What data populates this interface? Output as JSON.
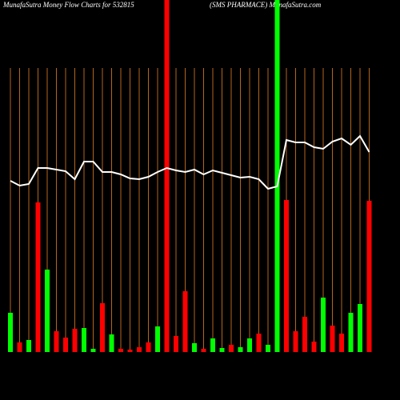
{
  "chart_data": {
    "type": "bar",
    "title": "MunafaSutra  Money Flow  Charts for 532815",
    "subtitle": "(SMS PHARMACE) MunafaSutra.com",
    "categories": [
      null,
      null,
      null,
      null,
      null,
      null,
      null,
      null,
      null,
      null,
      null,
      null,
      null,
      null,
      null,
      null,
      null,
      null,
      null,
      null,
      null,
      null,
      null,
      null,
      null,
      null,
      null,
      null,
      null,
      null,
      null,
      null,
      null,
      null,
      null,
      null,
      null,
      null,
      null,
      null
    ],
    "values": [
      49,
      12,
      15,
      187,
      103,
      26,
      18,
      29,
      30,
      4,
      61,
      22,
      4,
      3,
      6,
      12,
      32,
      440,
      20,
      76,
      11,
      4,
      17,
      5,
      9,
      6,
      17,
      23,
      9,
      440,
      190,
      26,
      44,
      13,
      68,
      33,
      23,
      49,
      60,
      189
    ],
    "colors": [
      "#00ff00",
      "#ff0000",
      "#00ff00",
      "#ff0000",
      "#00ff00",
      "#ff0000",
      "#ff0000",
      "#ff0000",
      "#00ff00",
      "#00ff00",
      "#ff0000",
      "#00ff00",
      "#ff0000",
      "#ff0000",
      "#ff0000",
      "#ff0000",
      "#00ff00",
      "#ff0000",
      "#ff0000",
      "#ff0000",
      "#00ff00",
      "#ff0000",
      "#00ff00",
      "#00ff00",
      "#ff0000",
      "#00ff00",
      "#00ff00",
      "#ff0000",
      "#00ff00",
      "#00ff00",
      "#ff0000",
      "#ff0000",
      "#ff0000",
      "#ff0000",
      "#00ff00",
      "#ff0000",
      "#ff0000",
      "#00ff00",
      "#00ff00",
      "#ff0000"
    ],
    "line": {
      "color": "#ffffff",
      "values": [
        214,
        208,
        210,
        230,
        230,
        228,
        226,
        216,
        238,
        238,
        225,
        225,
        222,
        217,
        216,
        219,
        225,
        230,
        227,
        225,
        228,
        222,
        227,
        224,
        221,
        218,
        219,
        216,
        204,
        207,
        265,
        262,
        262,
        256,
        254,
        263,
        267,
        259,
        270,
        250
      ]
    },
    "ylim": [
      0,
      440
    ],
    "grid": true,
    "grid_color": "#b5651d"
  }
}
